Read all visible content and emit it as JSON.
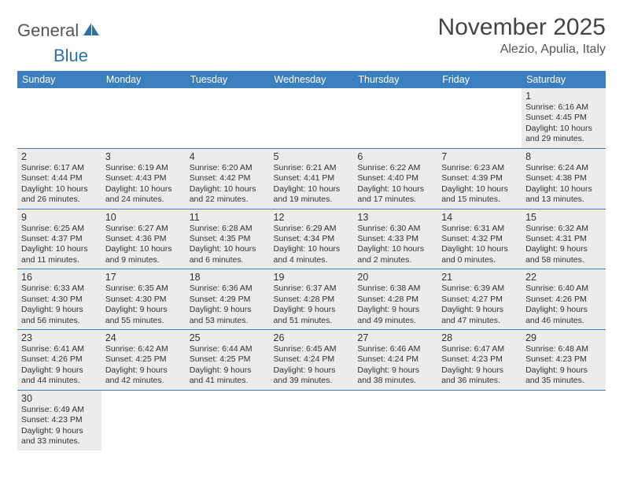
{
  "logo": {
    "part1": "General",
    "part2": "Blue"
  },
  "title": "November 2025",
  "location": "Alezio, Apulia, Italy",
  "colors": {
    "header_bg": "#3b7fbf",
    "header_text": "#ffffff",
    "shaded_bg": "#ececec",
    "row_border": "#3b7fbf",
    "title_color": "#444444",
    "text_color": "#333333",
    "logo_gray": "#555555",
    "logo_blue": "#2f6fa8"
  },
  "weekdays": [
    "Sunday",
    "Monday",
    "Tuesday",
    "Wednesday",
    "Thursday",
    "Friday",
    "Saturday"
  ],
  "weeks": [
    [
      null,
      null,
      null,
      null,
      null,
      null,
      {
        "n": "1",
        "sr": "Sunrise: 6:16 AM",
        "ss": "Sunset: 4:45 PM",
        "dl": "Daylight: 10 hours and 29 minutes."
      }
    ],
    [
      {
        "n": "2",
        "sr": "Sunrise: 6:17 AM",
        "ss": "Sunset: 4:44 PM",
        "dl": "Daylight: 10 hours and 26 minutes."
      },
      {
        "n": "3",
        "sr": "Sunrise: 6:19 AM",
        "ss": "Sunset: 4:43 PM",
        "dl": "Daylight: 10 hours and 24 minutes."
      },
      {
        "n": "4",
        "sr": "Sunrise: 6:20 AM",
        "ss": "Sunset: 4:42 PM",
        "dl": "Daylight: 10 hours and 22 minutes."
      },
      {
        "n": "5",
        "sr": "Sunrise: 6:21 AM",
        "ss": "Sunset: 4:41 PM",
        "dl": "Daylight: 10 hours and 19 minutes."
      },
      {
        "n": "6",
        "sr": "Sunrise: 6:22 AM",
        "ss": "Sunset: 4:40 PM",
        "dl": "Daylight: 10 hours and 17 minutes."
      },
      {
        "n": "7",
        "sr": "Sunrise: 6:23 AM",
        "ss": "Sunset: 4:39 PM",
        "dl": "Daylight: 10 hours and 15 minutes."
      },
      {
        "n": "8",
        "sr": "Sunrise: 6:24 AM",
        "ss": "Sunset: 4:38 PM",
        "dl": "Daylight: 10 hours and 13 minutes."
      }
    ],
    [
      {
        "n": "9",
        "sr": "Sunrise: 6:25 AM",
        "ss": "Sunset: 4:37 PM",
        "dl": "Daylight: 10 hours and 11 minutes."
      },
      {
        "n": "10",
        "sr": "Sunrise: 6:27 AM",
        "ss": "Sunset: 4:36 PM",
        "dl": "Daylight: 10 hours and 9 minutes."
      },
      {
        "n": "11",
        "sr": "Sunrise: 6:28 AM",
        "ss": "Sunset: 4:35 PM",
        "dl": "Daylight: 10 hours and 6 minutes."
      },
      {
        "n": "12",
        "sr": "Sunrise: 6:29 AM",
        "ss": "Sunset: 4:34 PM",
        "dl": "Daylight: 10 hours and 4 minutes."
      },
      {
        "n": "13",
        "sr": "Sunrise: 6:30 AM",
        "ss": "Sunset: 4:33 PM",
        "dl": "Daylight: 10 hours and 2 minutes."
      },
      {
        "n": "14",
        "sr": "Sunrise: 6:31 AM",
        "ss": "Sunset: 4:32 PM",
        "dl": "Daylight: 10 hours and 0 minutes."
      },
      {
        "n": "15",
        "sr": "Sunrise: 6:32 AM",
        "ss": "Sunset: 4:31 PM",
        "dl": "Daylight: 9 hours and 58 minutes."
      }
    ],
    [
      {
        "n": "16",
        "sr": "Sunrise: 6:33 AM",
        "ss": "Sunset: 4:30 PM",
        "dl": "Daylight: 9 hours and 56 minutes."
      },
      {
        "n": "17",
        "sr": "Sunrise: 6:35 AM",
        "ss": "Sunset: 4:30 PM",
        "dl": "Daylight: 9 hours and 55 minutes."
      },
      {
        "n": "18",
        "sr": "Sunrise: 6:36 AM",
        "ss": "Sunset: 4:29 PM",
        "dl": "Daylight: 9 hours and 53 minutes."
      },
      {
        "n": "19",
        "sr": "Sunrise: 6:37 AM",
        "ss": "Sunset: 4:28 PM",
        "dl": "Daylight: 9 hours and 51 minutes."
      },
      {
        "n": "20",
        "sr": "Sunrise: 6:38 AM",
        "ss": "Sunset: 4:28 PM",
        "dl": "Daylight: 9 hours and 49 minutes."
      },
      {
        "n": "21",
        "sr": "Sunrise: 6:39 AM",
        "ss": "Sunset: 4:27 PM",
        "dl": "Daylight: 9 hours and 47 minutes."
      },
      {
        "n": "22",
        "sr": "Sunrise: 6:40 AM",
        "ss": "Sunset: 4:26 PM",
        "dl": "Daylight: 9 hours and 46 minutes."
      }
    ],
    [
      {
        "n": "23",
        "sr": "Sunrise: 6:41 AM",
        "ss": "Sunset: 4:26 PM",
        "dl": "Daylight: 9 hours and 44 minutes."
      },
      {
        "n": "24",
        "sr": "Sunrise: 6:42 AM",
        "ss": "Sunset: 4:25 PM",
        "dl": "Daylight: 9 hours and 42 minutes."
      },
      {
        "n": "25",
        "sr": "Sunrise: 6:44 AM",
        "ss": "Sunset: 4:25 PM",
        "dl": "Daylight: 9 hours and 41 minutes."
      },
      {
        "n": "26",
        "sr": "Sunrise: 6:45 AM",
        "ss": "Sunset: 4:24 PM",
        "dl": "Daylight: 9 hours and 39 minutes."
      },
      {
        "n": "27",
        "sr": "Sunrise: 6:46 AM",
        "ss": "Sunset: 4:24 PM",
        "dl": "Daylight: 9 hours and 38 minutes."
      },
      {
        "n": "28",
        "sr": "Sunrise: 6:47 AM",
        "ss": "Sunset: 4:23 PM",
        "dl": "Daylight: 9 hours and 36 minutes."
      },
      {
        "n": "29",
        "sr": "Sunrise: 6:48 AM",
        "ss": "Sunset: 4:23 PM",
        "dl": "Daylight: 9 hours and 35 minutes."
      }
    ],
    [
      {
        "n": "30",
        "sr": "Sunrise: 6:49 AM",
        "ss": "Sunset: 4:23 PM",
        "dl": "Daylight: 9 hours and 33 minutes."
      },
      null,
      null,
      null,
      null,
      null,
      null
    ]
  ]
}
